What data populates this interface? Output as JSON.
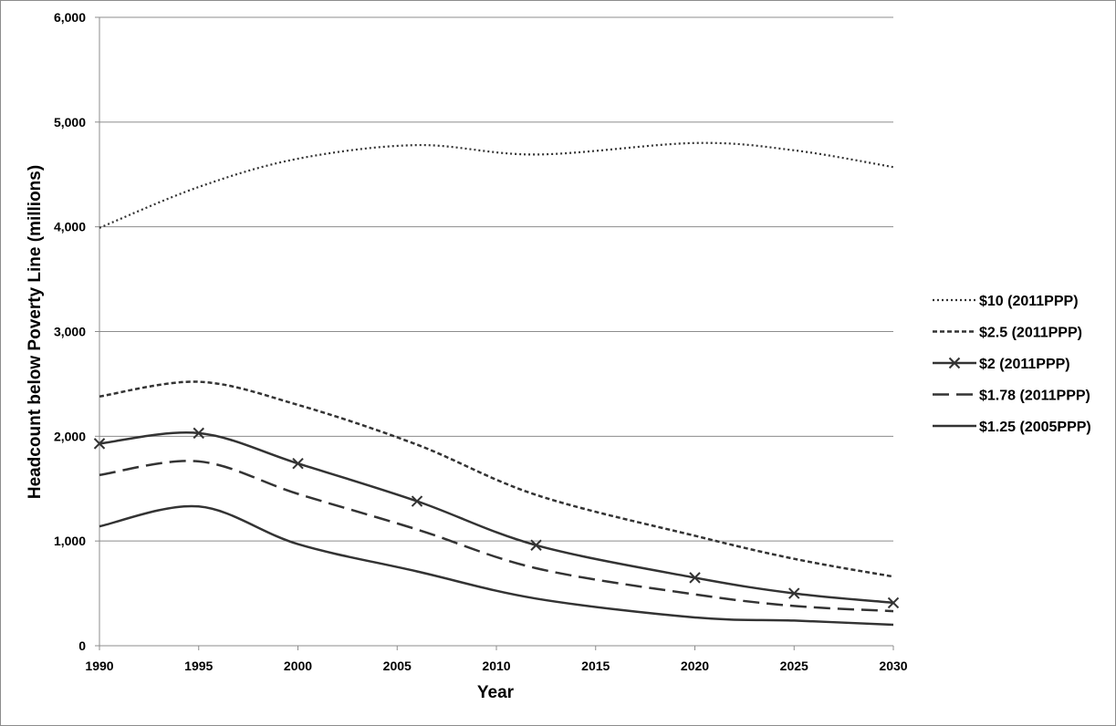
{
  "chart_data": {
    "type": "line",
    "title": "",
    "xlabel": "Year",
    "ylabel": "Headcount below Poverty Line (millions)",
    "xlim": [
      1990,
      2030
    ],
    "ylim": [
      0,
      6000
    ],
    "x_ticks": [
      1990,
      1995,
      2000,
      2005,
      2010,
      2015,
      2020,
      2025,
      2030
    ],
    "x_tick_labels": [
      "1990",
      "1995",
      "2000",
      "2005",
      "2010",
      "2015",
      "2020",
      "2025",
      "2030"
    ],
    "y_ticks": [
      0,
      1000,
      2000,
      3000,
      4000,
      5000,
      6000
    ],
    "y_tick_labels": [
      "0",
      "1,000",
      "2,000",
      "3,000",
      "4,000",
      "5,000",
      "6,000"
    ],
    "grid": "horizontal",
    "legend_position": "right",
    "series": [
      {
        "name": "$10 (2011PPP)",
        "style": "dotted",
        "color": "#333333",
        "markers": false,
        "x": [
          1990,
          1995,
          2000,
          2006,
          2012,
          2020,
          2025,
          2030
        ],
        "y": [
          3990,
          4380,
          4650,
          4780,
          4690,
          4800,
          4730,
          4570
        ]
      },
      {
        "name": "$2.5 (2011PPP)",
        "style": "dashed",
        "color": "#333333",
        "markers": false,
        "x": [
          1990,
          1995,
          2000,
          2006,
          2012,
          2020,
          2025,
          2030
        ],
        "y": [
          2380,
          2520,
          2300,
          1920,
          1440,
          1050,
          830,
          660
        ]
      },
      {
        "name": "$2 (2011PPP)",
        "style": "solid",
        "color": "#333333",
        "markers": true,
        "x": [
          1990,
          1995,
          2000,
          2006,
          2012,
          2020,
          2025,
          2030
        ],
        "y": [
          1930,
          2030,
          1740,
          1380,
          960,
          650,
          500,
          410
        ]
      },
      {
        "name": "$1.78 (2011PPP)",
        "style": "longdash",
        "color": "#333333",
        "markers": false,
        "x": [
          1990,
          1995,
          2000,
          2006,
          2012,
          2020,
          2025,
          2030
        ],
        "y": [
          1630,
          1760,
          1450,
          1110,
          740,
          490,
          380,
          330
        ]
      },
      {
        "name": "$1.25 (2005PPP)",
        "style": "solid",
        "color": "#333333",
        "markers": false,
        "x": [
          1990,
          1995,
          2000,
          2006,
          2012,
          2020,
          2025,
          2030
        ],
        "y": [
          1140,
          1330,
          970,
          710,
          450,
          270,
          240,
          200
        ]
      }
    ]
  }
}
